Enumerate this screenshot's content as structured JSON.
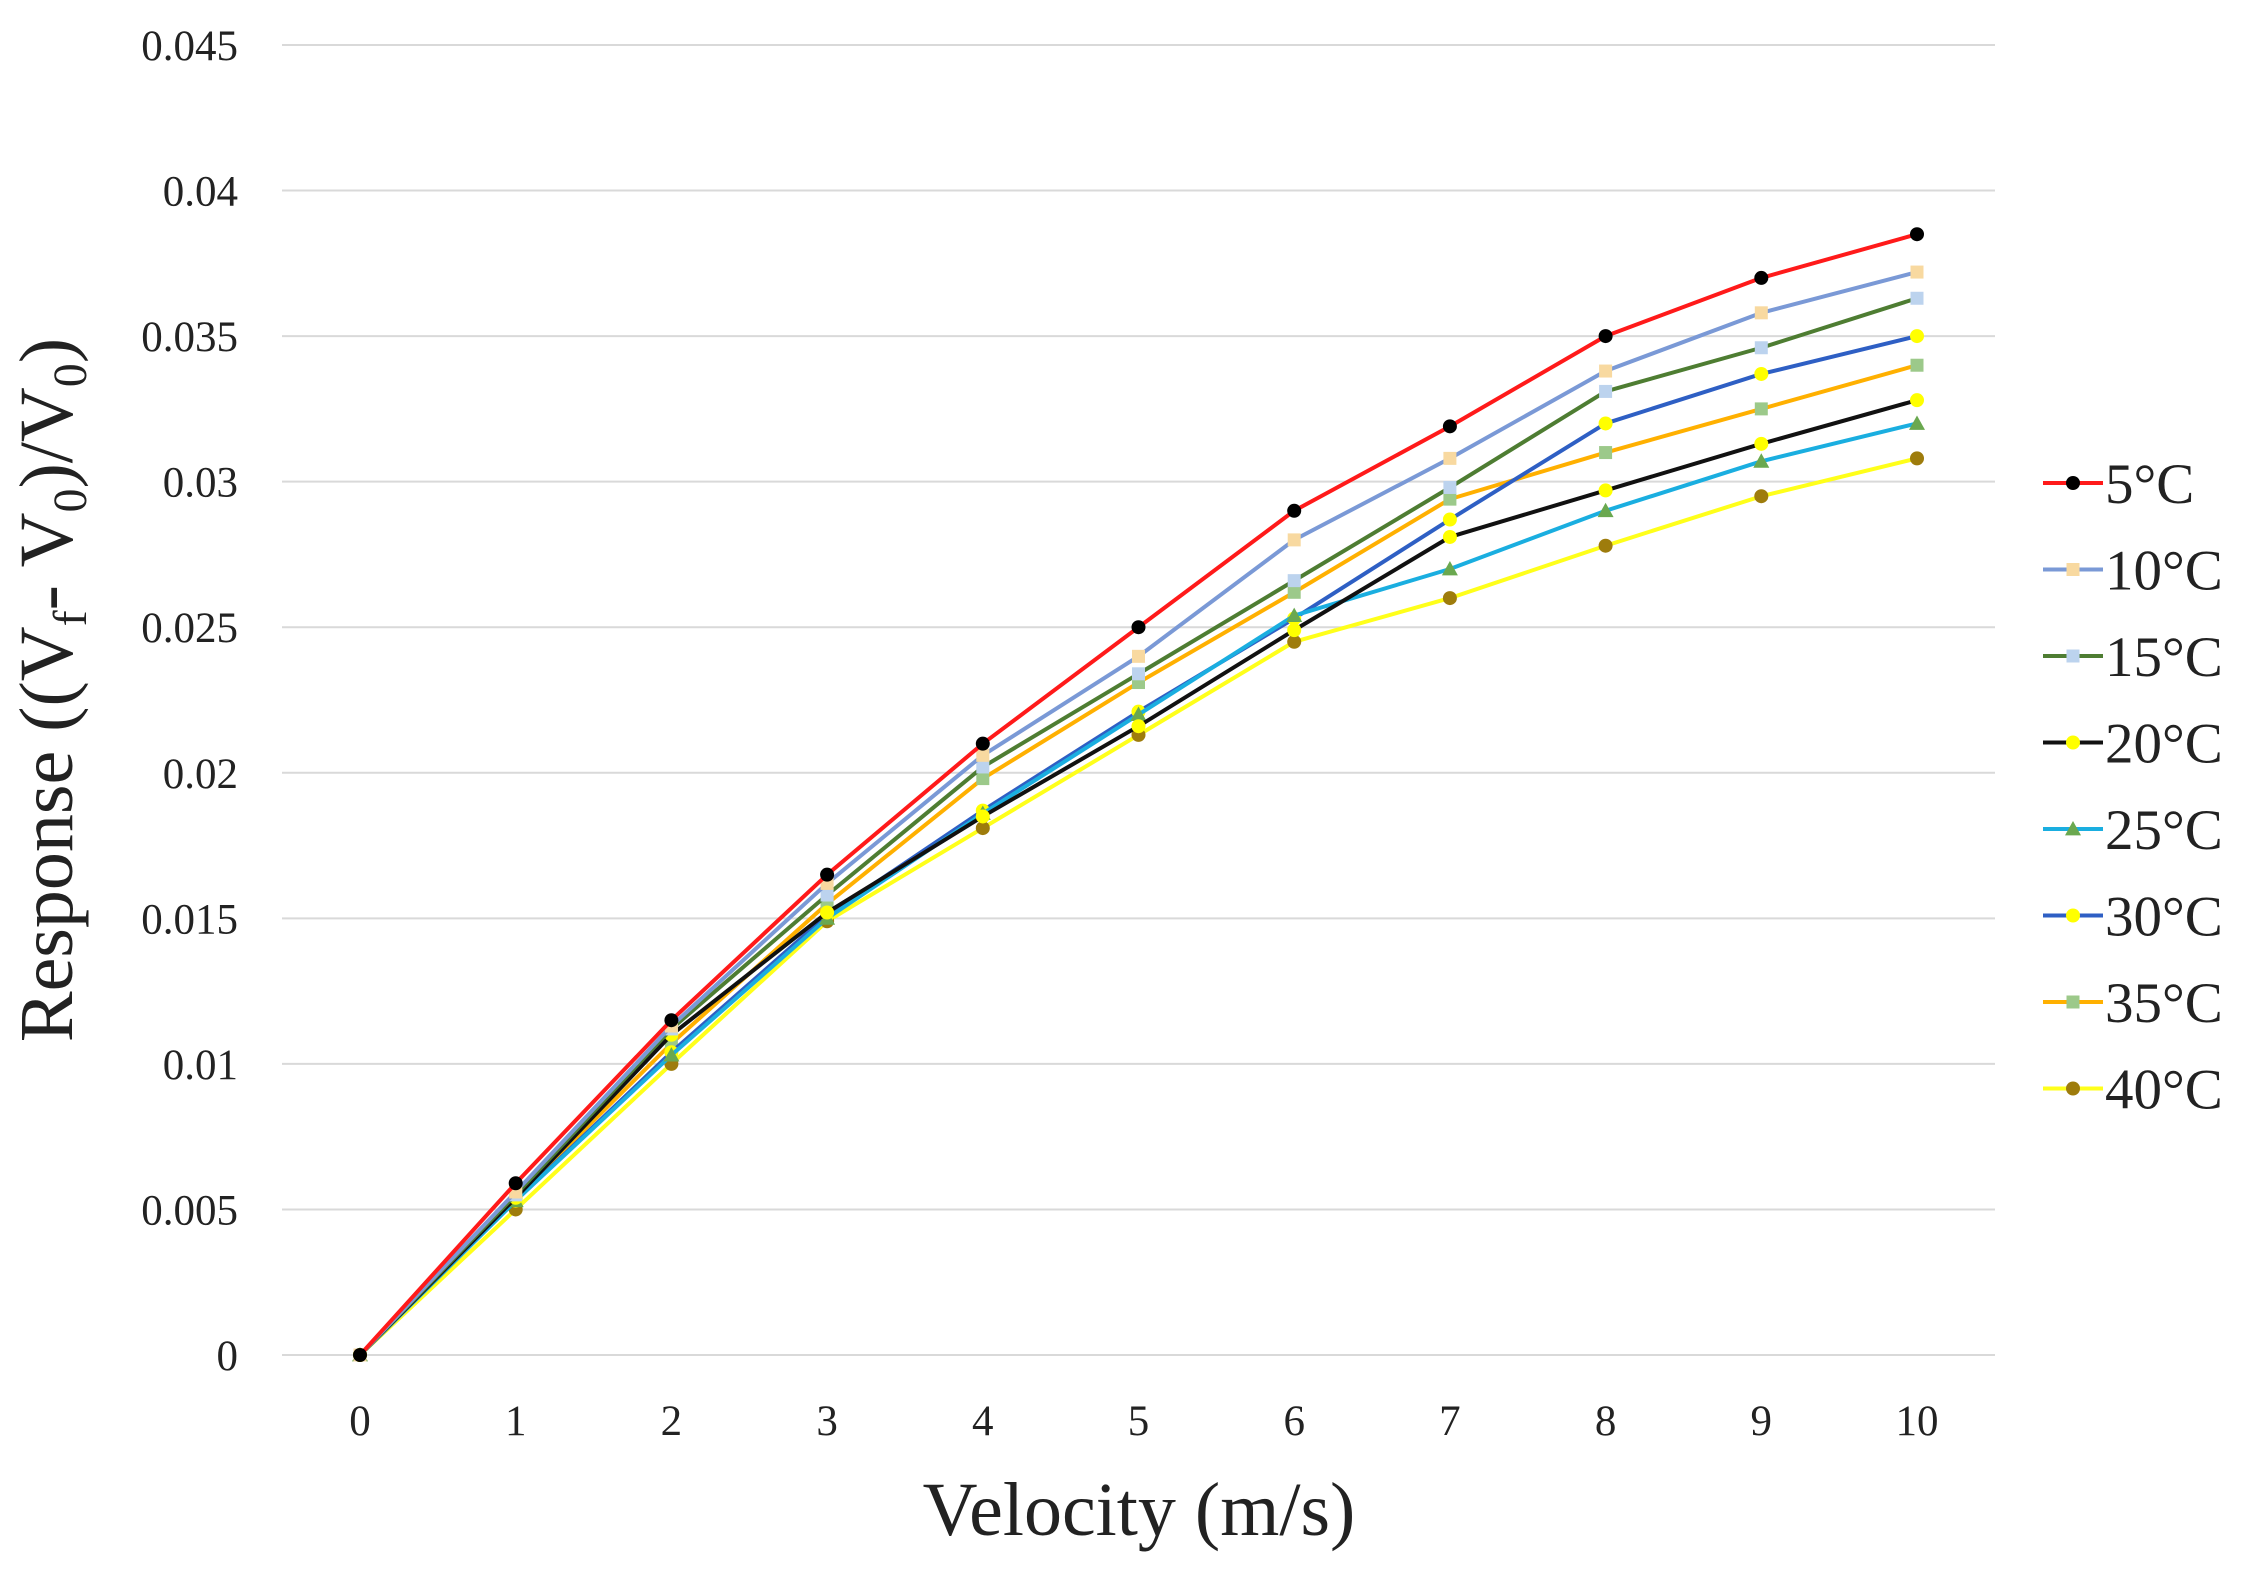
{
  "chart_data": {
    "type": "line",
    "title": "",
    "xlabel": "Velocity (m/s)",
    "ylabel_parts": {
      "prefix": "Response ((V",
      "sub_f": "f",
      "mid": "- V",
      "sub_0a": "0",
      "mid2": ")/V",
      "sub_0b": "0",
      "suffix": ")"
    },
    "ylabel": "Response ((Vf- V0)/V0)",
    "x": [
      0,
      1,
      2,
      3,
      4,
      5,
      6,
      7,
      8,
      9,
      10
    ],
    "xlim": [
      0,
      10
    ],
    "ylim": [
      0,
      0.045
    ],
    "x_ticks": [
      "0",
      "1",
      "2",
      "3",
      "4",
      "5",
      "6",
      "7",
      "8",
      "9",
      "10"
    ],
    "y_ticks": [
      {
        "value": 0,
        "label": "0"
      },
      {
        "value": 0.005,
        "label": "0.005"
      },
      {
        "value": 0.01,
        "label": "0.01"
      },
      {
        "value": 0.015,
        "label": "0.015"
      },
      {
        "value": 0.02,
        "label": "0.02"
      },
      {
        "value": 0.025,
        "label": "0.025"
      },
      {
        "value": 0.03,
        "label": "0.03"
      },
      {
        "value": 0.035,
        "label": "0.035"
      },
      {
        "value": 0.04,
        "label": "0.04"
      },
      {
        "value": 0.045,
        "label": "0.045"
      }
    ],
    "grid": "horizontal",
    "legend_position": "right",
    "series": [
      {
        "name": "5°C",
        "line_color": "#ff1a1a",
        "marker_color": "#000000",
        "marker": "circle",
        "values": [
          0,
          0.0059,
          0.0115,
          0.0165,
          0.021,
          0.025,
          0.029,
          0.0319,
          0.035,
          0.037,
          0.0385
        ]
      },
      {
        "name": "10°C",
        "line_color": "#7a99d6",
        "marker_color": "#f8d9a0",
        "marker": "square",
        "values": [
          0,
          0.0056,
          0.0113,
          0.0162,
          0.0206,
          0.024,
          0.028,
          0.0308,
          0.0338,
          0.0358,
          0.0372
        ]
      },
      {
        "name": "15°C",
        "line_color": "#4e7d32",
        "marker_color": "#bcd3ee",
        "marker": "square",
        "values": [
          0,
          0.0055,
          0.0112,
          0.0158,
          0.0202,
          0.0234,
          0.0266,
          0.0298,
          0.0331,
          0.0346,
          0.0363
        ]
      },
      {
        "name": "20°C",
        "line_color": "#111111",
        "marker_color": "#ffff00",
        "marker": "circle",
        "values": [
          0,
          0.0054,
          0.011,
          0.0152,
          0.0185,
          0.0216,
          0.0249,
          0.0281,
          0.0297,
          0.0313,
          0.0328
        ]
      },
      {
        "name": "25°C",
        "line_color": "#1aaee0",
        "marker_color": "#6aa84f",
        "marker": "triangle",
        "values": [
          0,
          0.0053,
          0.0103,
          0.015,
          0.0186,
          0.022,
          0.0254,
          0.027,
          0.029,
          0.0307,
          0.032
        ]
      },
      {
        "name": "30°C",
        "line_color": "#2e5fc4",
        "marker_color": "#ffff00",
        "marker": "circle",
        "values": [
          0,
          0.0053,
          0.0104,
          0.0151,
          0.0187,
          0.0221,
          0.0253,
          0.0287,
          0.032,
          0.0337,
          0.035
        ]
      },
      {
        "name": "35°C",
        "line_color": "#ffb000",
        "marker_color": "#9cc98a",
        "marker": "square",
        "values": [
          0,
          0.0054,
          0.0107,
          0.0155,
          0.0198,
          0.0231,
          0.0262,
          0.0294,
          0.031,
          0.0325,
          0.034
        ]
      },
      {
        "name": "40°C",
        "line_color": "#ffff1a",
        "marker_color": "#9e7c0c",
        "marker": "circle",
        "values": [
          0,
          0.005,
          0.01,
          0.0149,
          0.0181,
          0.0213,
          0.0245,
          0.026,
          0.0278,
          0.0295,
          0.0308
        ]
      }
    ]
  }
}
